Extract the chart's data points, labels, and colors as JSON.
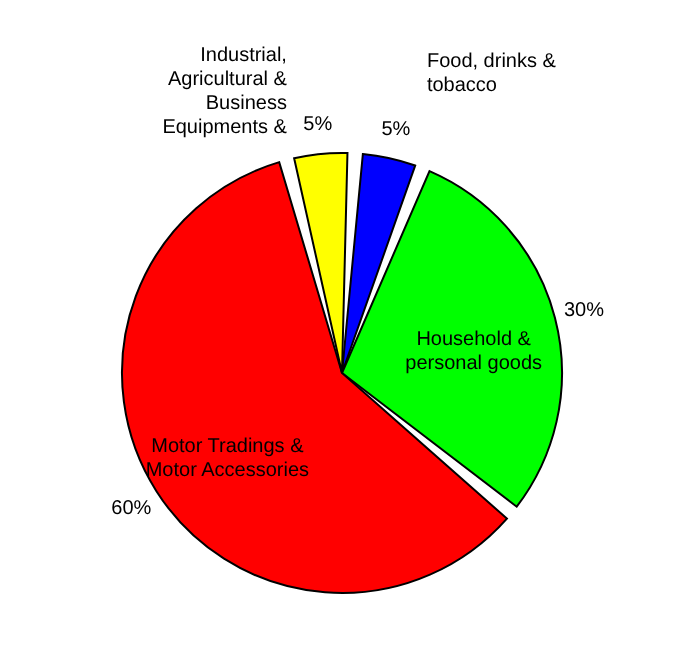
{
  "chart_data": {
    "type": "pie",
    "categories": [
      "Food, drinks & tobacco",
      "Household & personal goods",
      "Motor Tradings & Motor Accessories",
      "Industrial, Agricultural & Business Equipments &"
    ],
    "values": [
      5,
      30,
      60,
      5
    ],
    "colors": [
      "#0000ff",
      "#00ff00",
      "#ff0000",
      "#ffff00"
    ],
    "value_labels": [
      "5%",
      "30%",
      "60%",
      "5%"
    ],
    "legend": false
  }
}
